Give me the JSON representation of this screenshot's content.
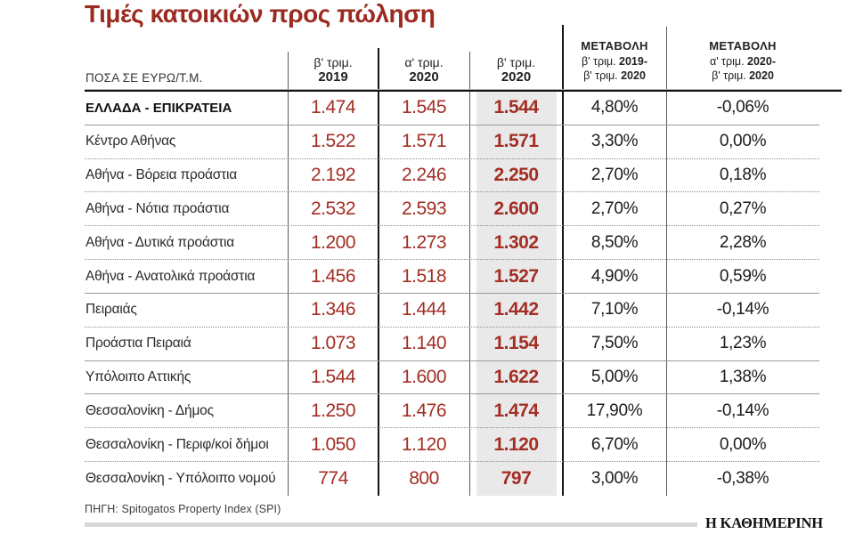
{
  "title": "Τιμές κατοικιών προς πώληση",
  "colors": {
    "title_red": "#9b2a21",
    "number_red": "#a32e24",
    "highlight_band": "#e9e9e9"
  },
  "table": {
    "unit_label": "ΠΟΣΑ ΣΕ ΕΥΡΩ/Τ.Μ.",
    "quarter_columns": [
      {
        "prefix": "β' τριμ.",
        "year": "2019"
      },
      {
        "prefix": "α' τριμ.",
        "year": "2020"
      },
      {
        "prefix": "β' τριμ.",
        "year": "2020"
      }
    ],
    "change_columns": [
      {
        "title": "ΜΕΤΑΒΟΛΗ",
        "l2_prefix": "β' τριμ. ",
        "l2_year": "2019-",
        "l3_prefix": "β' τριμ. ",
        "l3_year": "2020"
      },
      {
        "title": "ΜΕΤΑΒΟΛΗ",
        "l2_prefix": "α' τριμ. ",
        "l2_year": "2020-",
        "l3_prefix": "β' τριμ. ",
        "l3_year": "2020"
      }
    ],
    "rows": [
      {
        "label": "ΕΛΛΑΔΑ - ΕΠΙΚΡΑΤΕΙΑ",
        "q2_2019": "1.474",
        "q1_2020": "1.545",
        "q2_2020": "1.544",
        "change_yoy": "4,80%",
        "change_qoq": "-0,06%"
      },
      {
        "label": "Κέντρο Αθήνας",
        "q2_2019": "1.522",
        "q1_2020": "1.571",
        "q2_2020": "1.571",
        "change_yoy": "3,30%",
        "change_qoq": "0,00%"
      },
      {
        "label": "Αθήνα - Βόρεια προάστια",
        "q2_2019": "2.192",
        "q1_2020": "2.246",
        "q2_2020": "2.250",
        "change_yoy": "2,70%",
        "change_qoq": "0,18%"
      },
      {
        "label": "Αθήνα - Νότια προάστια",
        "q2_2019": "2.532",
        "q1_2020": "2.593",
        "q2_2020": "2.600",
        "change_yoy": "2,70%",
        "change_qoq": "0,27%"
      },
      {
        "label": "Αθήνα - Δυτικά προάστια",
        "q2_2019": "1.200",
        "q1_2020": "1.273",
        "q2_2020": "1.302",
        "change_yoy": "8,50%",
        "change_qoq": "2,28%"
      },
      {
        "label": "Αθήνα - Ανατολικά προάστια",
        "q2_2019": "1.456",
        "q1_2020": "1.518",
        "q2_2020": "1.527",
        "change_yoy": "4,90%",
        "change_qoq": "0,59%"
      },
      {
        "label": "Πειραιάς",
        "q2_2019": "1.346",
        "q1_2020": "1.444",
        "q2_2020": "1.442",
        "change_yoy": "7,10%",
        "change_qoq": "-0,14%"
      },
      {
        "label": "Προάστια Πειραιά",
        "q2_2019": "1.073",
        "q1_2020": "1.140",
        "q2_2020": "1.154",
        "change_yoy": "7,50%",
        "change_qoq": "1,23%"
      },
      {
        "label": "Υπόλοιπο Αττικής",
        "q2_2019": "1.544",
        "q1_2020": "1.600",
        "q2_2020": "1.622",
        "change_yoy": "5,00%",
        "change_qoq": "1,38%"
      },
      {
        "label": "Θεσσαλονίκη - Δήμος",
        "q2_2019": "1.250",
        "q1_2020": "1.476",
        "q2_2020": "1.474",
        "change_yoy": "17,90%",
        "change_qoq": "-0,14%"
      },
      {
        "label": "Θεσσαλονίκη - Περιφ/κοί δήμοι",
        "q2_2019": "1.050",
        "q1_2020": "1.120",
        "q2_2020": "1.120",
        "change_yoy": "6,70%",
        "change_qoq": "0,00%"
      },
      {
        "label": "Θεσσαλονίκη - Υπόλοιπο νομού",
        "q2_2019": "774",
        "q1_2020": "800",
        "q2_2020": "797",
        "change_yoy": "3,00%",
        "change_qoq": "-0,38%"
      }
    ]
  },
  "source": "ΠΗΓΗ: Spitogatos Property Index (SPI)",
  "brand": "Η ΚΑΘΗΜΕΡΙΝΗ",
  "chart_data": {
    "type": "table",
    "title": "Τιμές κατοικιών προς πώληση",
    "unit": "ΠΟΣΑ ΣΕ ΕΥΡΩ/Τ.Μ.",
    "columns": [
      "β' τριμ. 2019",
      "α' τριμ. 2020",
      "β' τριμ. 2020",
      "ΜΕΤΑΒΟΛΗ β' τριμ. 2019- β' τριμ. 2020",
      "ΜΕΤΑΒΟΛΗ α' τριμ. 2020- β' τριμ. 2020"
    ],
    "rows": [
      [
        "ΕΛΛΑΔΑ - ΕΠΙΚΡΑΤΕΙΑ",
        1474,
        1545,
        1544,
        "4,80%",
        "-0,06%"
      ],
      [
        "Κέντρο Αθήνας",
        1522,
        1571,
        1571,
        "3,30%",
        "0,00%"
      ],
      [
        "Αθήνα - Βόρεια προάστια",
        2192,
        2246,
        2250,
        "2,70%",
        "0,18%"
      ],
      [
        "Αθήνα - Νότια προάστια",
        2532,
        2593,
        2600,
        "2,70%",
        "0,27%"
      ],
      [
        "Αθήνα - Δυτικά προάστια",
        1200,
        1273,
        1302,
        "8,50%",
        "2,28%"
      ],
      [
        "Αθήνα - Ανατολικά προάστια",
        1456,
        1518,
        1527,
        "4,90%",
        "0,59%"
      ],
      [
        "Πειραιάς",
        1346,
        1444,
        1442,
        "7,10%",
        "-0,14%"
      ],
      [
        "Προάστια Πειραιά",
        1073,
        1140,
        1154,
        "7,50%",
        "1,23%"
      ],
      [
        "Υπόλοιπο Αττικής",
        1544,
        1600,
        1622,
        "5,00%",
        "1,38%"
      ],
      [
        "Θεσσαλονίκη - Δήμος",
        1250,
        1476,
        1474,
        "17,90%",
        "-0,14%"
      ],
      [
        "Θεσσαλονίκη - Περιφ/κοί δήμοι",
        1050,
        1120,
        1120,
        "6,70%",
        "0,00%"
      ],
      [
        "Θεσσαλονίκη - Υπόλοιπο νομού",
        774,
        800,
        797,
        "3,00%",
        "-0,38%"
      ]
    ],
    "source": "Spitogatos Property Index (SPI)",
    "highlighted_column": "β' τριμ. 2020"
  }
}
